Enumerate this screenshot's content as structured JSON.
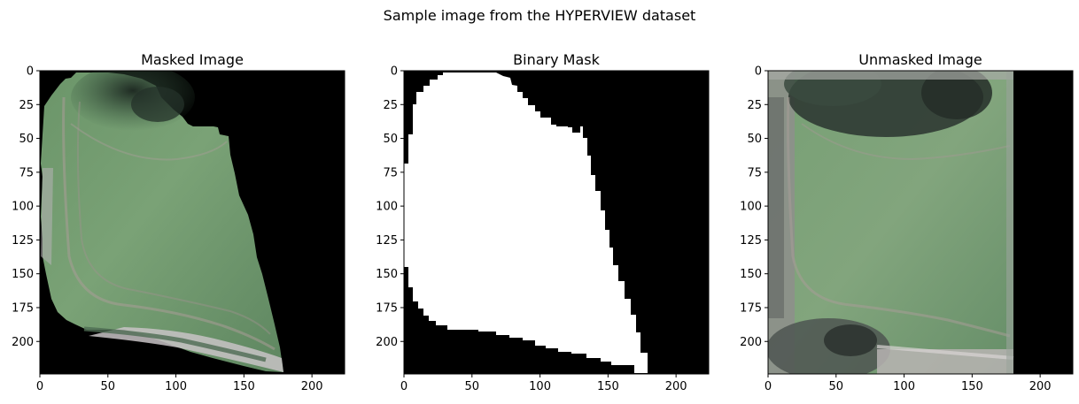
{
  "chart_data": {
    "suptitle": "Sample image from the HYPERVIEW dataset",
    "shared_axes": {
      "xlim": [
        0,
        224
      ],
      "ylim": [
        224,
        0
      ],
      "xticks": [
        0,
        50,
        100,
        150,
        200
      ],
      "yticks": [
        0,
        25,
        50,
        75,
        100,
        125,
        150,
        175,
        200
      ]
    },
    "panels": [
      {
        "type": "image",
        "title": "Masked Image",
        "content": "masked field image, outside pixels black",
        "colors": {
          "background": "#000000",
          "field": "#6d9466",
          "shadow": "#26342a",
          "soil_edge": "#c7c2c4"
        }
      },
      {
        "type": "image",
        "title": "Binary Mask",
        "content": "binary mask, white=field, black=masked",
        "colors": {
          "background": "#000000",
          "mask": "#ffffff"
        }
      },
      {
        "type": "image",
        "title": "Unmasked Image",
        "content": "raw field image, black padding on right",
        "colors": {
          "background": "#000000",
          "field": "#779d73",
          "trees": "#2c3430",
          "border": "#a9aaa7"
        }
      }
    ]
  }
}
